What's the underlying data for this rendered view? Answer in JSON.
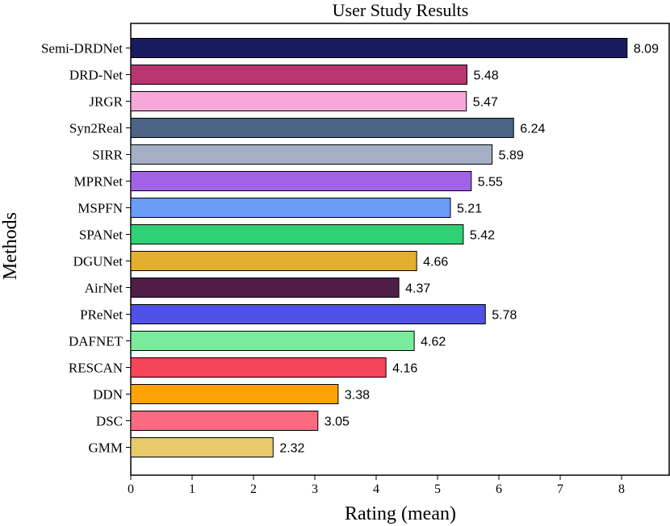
{
  "chart_data": {
    "type": "bar",
    "orientation": "horizontal",
    "title": "User Study Results",
    "xlabel": "Rating (mean)",
    "ylabel": "Methods",
    "xlim": [
      0,
      8.8
    ],
    "xticks": [
      0,
      1,
      2,
      3,
      4,
      5,
      6,
      7,
      8
    ],
    "grid": false,
    "categories": [
      "Semi-DRDNet",
      "DRD-Net",
      "JRGR",
      "Syn2Real",
      "SIRR",
      "MPRNet",
      "MSPFN",
      "SPANet",
      "DGUNet",
      "AirNet",
      "PReNet",
      "DAFNET",
      "RESCAN",
      "DDN",
      "DSC",
      "GMM"
    ],
    "values": [
      8.09,
      5.48,
      5.47,
      6.24,
      5.89,
      5.55,
      5.21,
      5.42,
      4.66,
      4.37,
      5.78,
      4.62,
      4.16,
      3.38,
      3.05,
      2.32
    ],
    "value_labels": [
      "8.09",
      "5.48",
      "5.47",
      "6.24",
      "5.89",
      "5.55",
      "5.21",
      "5.42",
      "4.66",
      "4.37",
      "5.78",
      "4.62",
      "4.16",
      "3.38",
      "3.05",
      "2.32"
    ],
    "colors": [
      "#1a1a5e",
      "#b83570",
      "#f7a8db",
      "#4c6384",
      "#a4afc5",
      "#a262e8",
      "#6b9cf7",
      "#2ed173",
      "#e3af2f",
      "#4f1d48",
      "#4f50e8",
      "#7aeb9c",
      "#f54558",
      "#fca306",
      "#fa6a80",
      "#e8c96b"
    ]
  }
}
